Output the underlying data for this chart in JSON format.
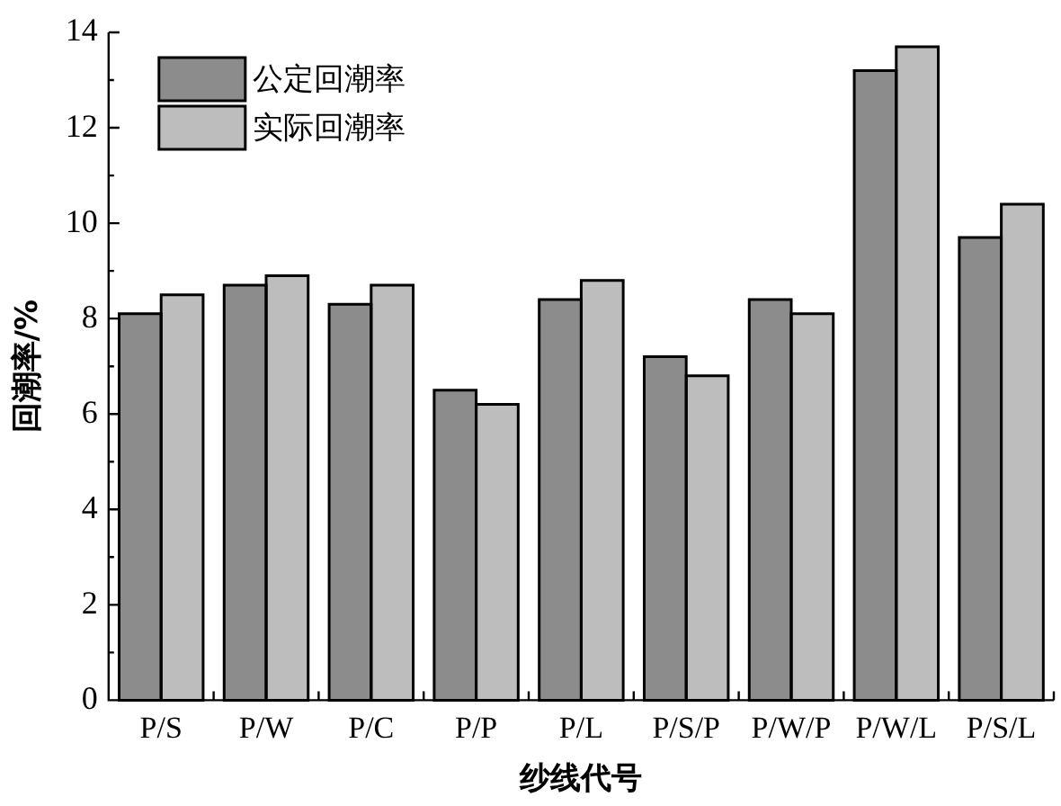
{
  "chart_data": {
    "type": "bar",
    "xlabel": "纱线代号",
    "ylabel": "回潮率/%",
    "categories": [
      "P/S",
      "P/W",
      "P/C",
      "P/P",
      "P/L",
      "P/S/P",
      "P/W/P",
      "P/W/L",
      "P/S/L"
    ],
    "series": [
      {
        "name": "公定回潮率",
        "color": "#8c8c8c",
        "values": [
          8.1,
          8.7,
          8.3,
          6.5,
          8.4,
          7.2,
          8.4,
          13.2,
          9.7
        ]
      },
      {
        "name": "实际回潮率",
        "color": "#bdbdbd",
        "values": [
          8.5,
          8.9,
          8.7,
          6.2,
          8.8,
          6.8,
          8.1,
          13.7,
          10.4
        ]
      }
    ],
    "ylim": [
      0,
      14
    ],
    "yticks": [
      0,
      {
        "value": 1,
        "label": null
      },
      2,
      {
        "value": 3,
        "label": null
      },
      4,
      {
        "value": 5,
        "label": null
      },
      6,
      {
        "value": 7,
        "label": null
      },
      8,
      {
        "value": 9,
        "label": null
      },
      10,
      {
        "value": 11,
        "label": null
      },
      12,
      {
        "value": 13,
        "label": null
      },
      14
    ],
    "grid": false,
    "legend": "top left"
  }
}
